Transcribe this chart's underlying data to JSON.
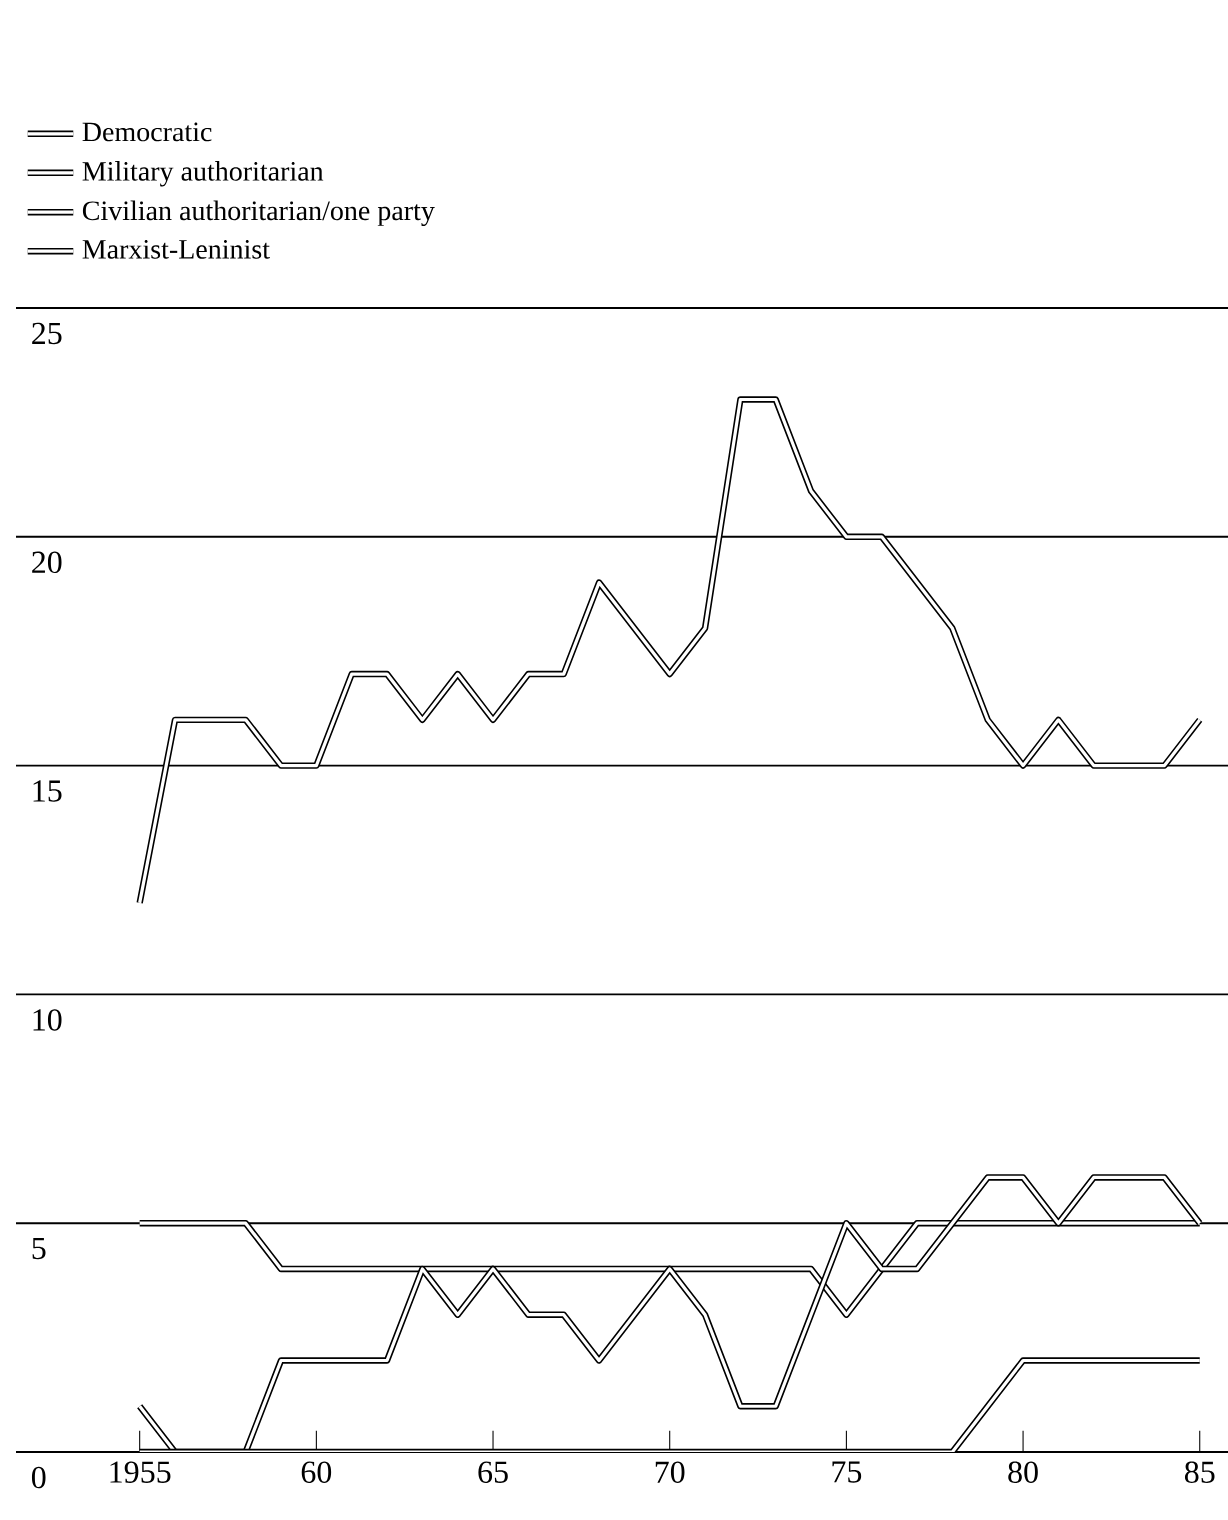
{
  "chart_data": {
    "type": "line",
    "x": [
      1955,
      1956,
      1957,
      1958,
      1959,
      1960,
      1961,
      1962,
      1963,
      1964,
      1965,
      1966,
      1967,
      1968,
      1969,
      1970,
      1971,
      1972,
      1973,
      1974,
      1975,
      1976,
      1977,
      1978,
      1979,
      1980,
      1981,
      1982,
      1983,
      1984,
      1985
    ],
    "series": [
      {
        "name": "Democratic",
        "color": "#000000",
        "values": [
          5,
          5,
          5,
          5,
          4,
          4,
          4,
          4,
          4,
          4,
          4,
          4,
          4,
          4,
          4,
          4,
          4,
          4,
          4,
          4,
          3,
          4,
          5,
          5,
          5,
          5,
          5,
          5,
          5,
          5,
          5
        ]
      },
      {
        "name": "Military authoritarian",
        "color": "#000000",
        "values": [
          1,
          0,
          0,
          0,
          2,
          2,
          2,
          2,
          4,
          3,
          4,
          3,
          3,
          2,
          3,
          4,
          3,
          1,
          1,
          3,
          5,
          4,
          4,
          5,
          6,
          6,
          5,
          6,
          6,
          6,
          5
        ]
      },
      {
        "name": "Civilian authoritarian/one party",
        "color": "#000000",
        "values": [
          12,
          16,
          16,
          16,
          15,
          15,
          17,
          17,
          16,
          17,
          16,
          17,
          17,
          19,
          18,
          17,
          18,
          23,
          23,
          21,
          20,
          20,
          19,
          18,
          16,
          15,
          16,
          15,
          15,
          15,
          16
        ]
      },
      {
        "name": "Marxist-Leninist",
        "color": "#000000",
        "values": [
          0,
          0,
          0,
          0,
          0,
          0,
          0,
          0,
          0,
          0,
          0,
          0,
          0,
          0,
          0,
          0,
          0,
          0,
          0,
          0,
          0,
          0,
          0,
          0,
          1,
          2,
          2,
          2,
          2,
          2,
          2
        ]
      }
    ],
    "xlim": [
      1951.5,
      1985.8
    ],
    "xticks": [
      {
        "value": 1955,
        "label": "1955"
      },
      {
        "value": 1960,
        "label": "60"
      },
      {
        "value": 1965,
        "label": "65"
      },
      {
        "value": 1970,
        "label": "70"
      },
      {
        "value": 1975,
        "label": "75"
      },
      {
        "value": 1980,
        "label": "80"
      },
      {
        "value": 1985,
        "label": "85"
      }
    ],
    "ylim": [
      0,
      25
    ],
    "yticks": [
      0,
      5,
      10,
      15,
      20,
      25
    ],
    "grid": "y",
    "legend": "top left",
    "marker": "none",
    "line_style": "solid"
  }
}
